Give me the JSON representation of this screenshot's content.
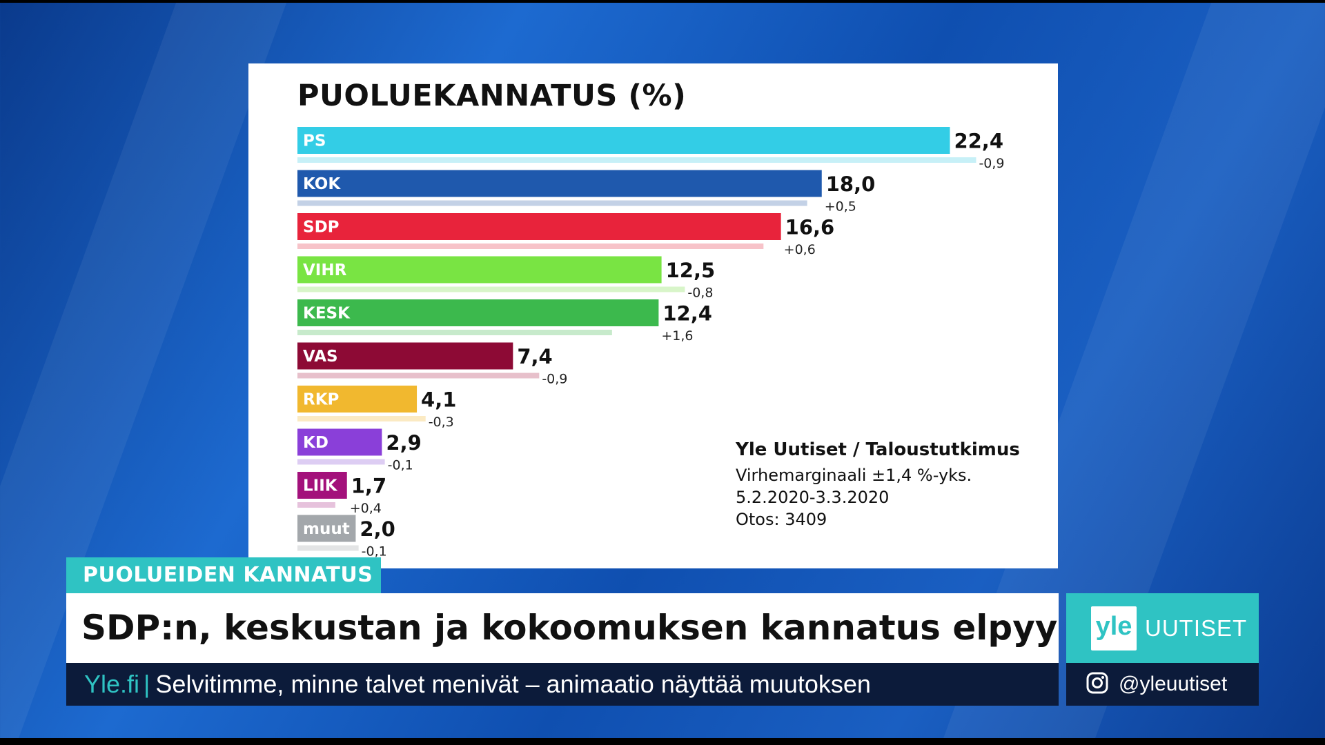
{
  "chart_data": {
    "type": "bar",
    "orientation": "horizontal",
    "title": "PUOLUEKANNATUS (%)",
    "unit": "%",
    "categories": [
      "PS",
      "KOK",
      "SDP",
      "VIHR",
      "KESK",
      "VAS",
      "RKP",
      "KD",
      "LIIK",
      "muut"
    ],
    "values": [
      22.4,
      18.0,
      16.6,
      12.5,
      12.4,
      7.4,
      4.1,
      2.9,
      1.7,
      2.0
    ],
    "value_labels": [
      "22,4",
      "18,0",
      "16,6",
      "12,5",
      "12,4",
      "7,4",
      "4,1",
      "2,9",
      "1,7",
      "2,0"
    ],
    "changes": [
      -0.9,
      0.5,
      0.6,
      -0.8,
      1.6,
      -0.9,
      -0.3,
      -0.1,
      0.4,
      -0.1
    ],
    "change_labels": [
      "-0,9",
      "+0,5",
      "+0,6",
      "-0,8",
      "+1,6",
      "-0,9",
      "-0,3",
      "-0,1",
      "+0,4",
      "-0,1"
    ],
    "previous_values": [
      23.3,
      17.5,
      16.0,
      13.3,
      10.8,
      8.3,
      4.4,
      3.0,
      1.3,
      2.1
    ],
    "colors": [
      "#33cde6",
      "#1f59ad",
      "#e8233b",
      "#79e443",
      "#3cb94d",
      "#8d0a35",
      "#f1b82f",
      "#8a3fd9",
      "#a3117b",
      "#a3a7ab"
    ],
    "prev_colors": [
      "#c7f0f7",
      "#c3d1e6",
      "#f7c3c9",
      "#d8f5c9",
      "#c7eacb",
      "#e7c0cb",
      "#fbeac3",
      "#ddcdf3",
      "#e6c2dc",
      "#e3e4e5"
    ],
    "xlim": [
      0,
      24
    ]
  },
  "source": {
    "title": "Yle Uutiset / Taloustutkimus",
    "margin_of_error": "Virhemarginaali ±1,4 %-yks.",
    "period": "5.2.2020-3.3.2020",
    "sample": "Otos: 3409"
  },
  "lower_third": {
    "topic": "PUOLUEIDEN KANNATUS",
    "headline": "SDP:n, keskustan ja kokoomuksen kannatus elpyy",
    "ticker_source": "Yle.fi",
    "ticker_sep": "|",
    "ticker_text": "Selvitimme, minne talvet menivät – animaatio näyttää muutoksen"
  },
  "branding": {
    "badge": "yle",
    "name": "UUTISET",
    "social_handle": "@yleuutiset",
    "accent": "#2fc3c3"
  }
}
